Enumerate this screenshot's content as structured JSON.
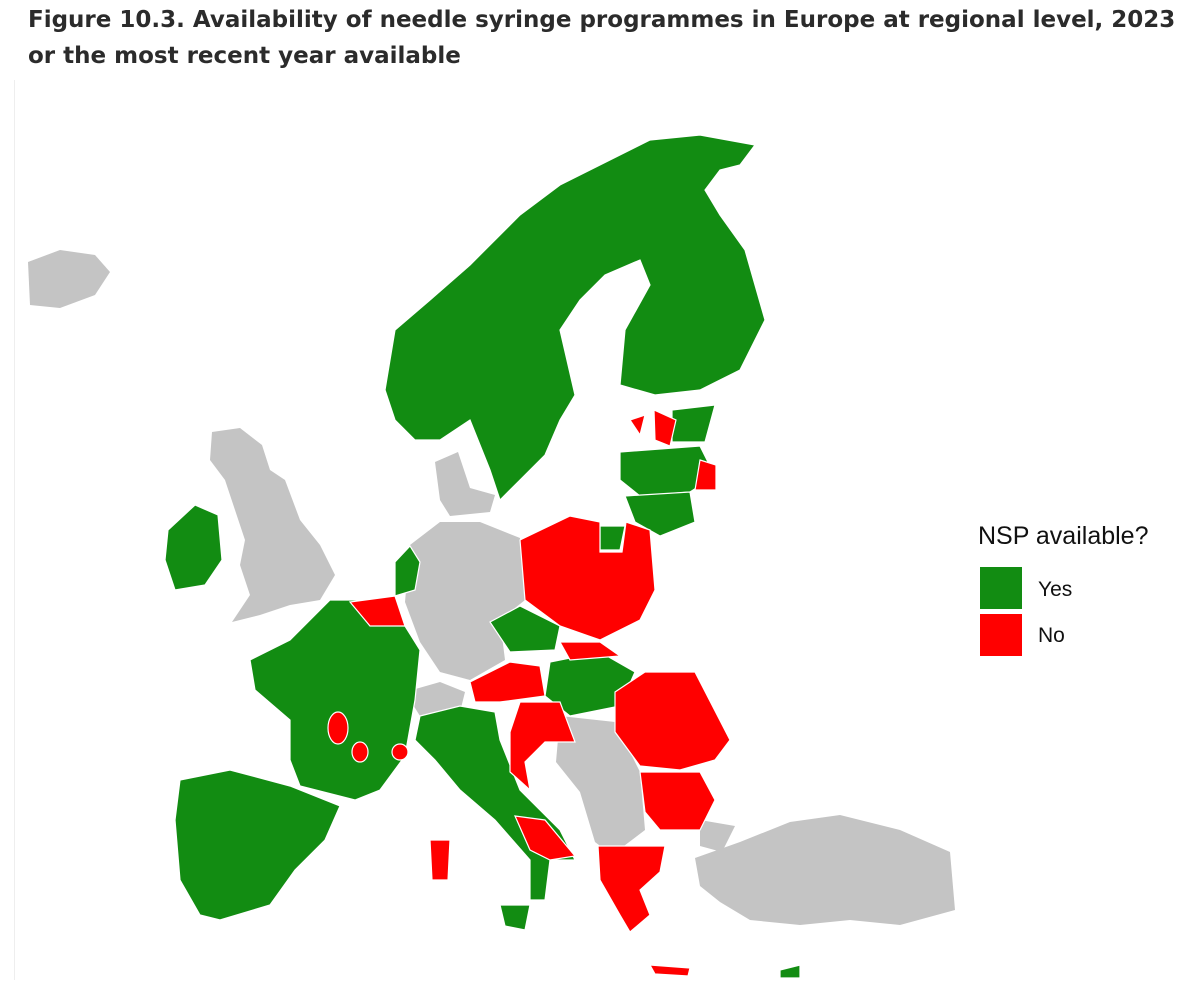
{
  "title": "Figure 10.3. Availability of needle syringe programmes in Europe at regional level, 2023 or the most recent year available",
  "legend": {
    "title": "NSP available?",
    "items": [
      {
        "label": "Yes",
        "color": "#128c12"
      },
      {
        "label": "No",
        "color": "#ff0000"
      }
    ]
  }
}
